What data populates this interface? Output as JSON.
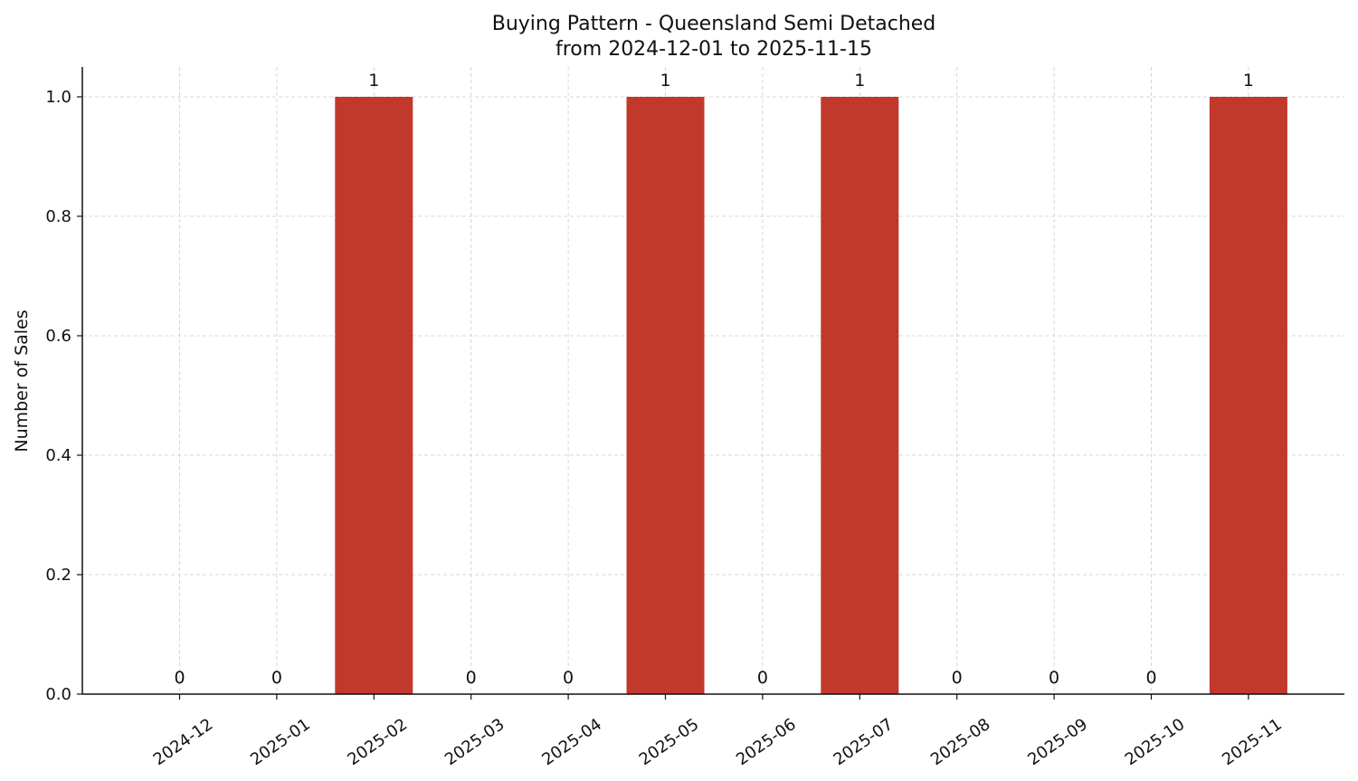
{
  "chart_data": {
    "type": "bar",
    "title": "Buying Pattern - Queensland Semi Detached",
    "subtitle": "from 2024-12-01 to 2025-11-15",
    "xlabel": "",
    "ylabel": "Number of Sales",
    "categories": [
      "2024-12",
      "2025-01",
      "2025-02",
      "2025-03",
      "2025-04",
      "2025-05",
      "2025-06",
      "2025-07",
      "2025-08",
      "2025-09",
      "2025-10",
      "2025-11"
    ],
    "values": [
      0,
      0,
      1,
      0,
      0,
      1,
      0,
      1,
      0,
      0,
      0,
      1
    ],
    "data_labels": [
      "0",
      "0",
      "1",
      "0",
      "0",
      "1",
      "0",
      "1",
      "0",
      "0",
      "0",
      "1"
    ],
    "ylim": [
      0,
      1.05
    ],
    "yticks": [
      "0.0",
      "0.2",
      "0.4",
      "0.6",
      "0.8",
      "1.0"
    ],
    "grid": true,
    "bar_color": "#c0392b"
  }
}
